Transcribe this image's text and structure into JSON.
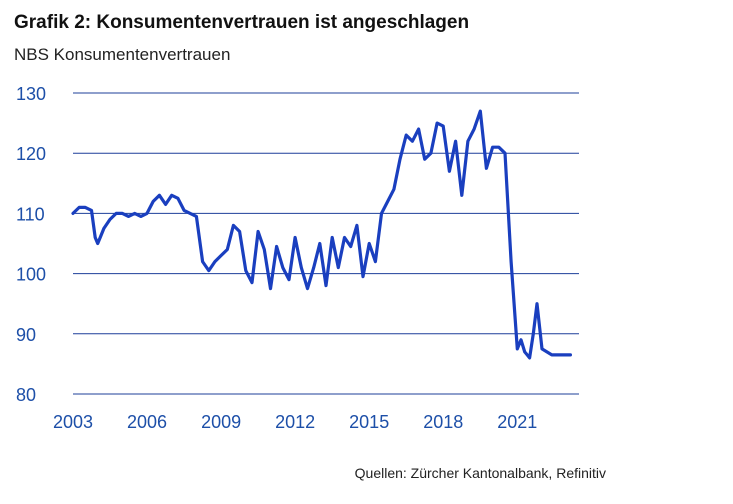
{
  "title": "Grafik 2: Konsumentenvertrauen ist angeschlagen",
  "subtitle": "NBS Konsumentenvertrauen",
  "source": "Quellen: Zürcher Kantonalbank, Refinitiv",
  "colors": {
    "line": "#1a3fbf",
    "axis_text": "#1d4fa8",
    "grid": "#1d3f9a"
  },
  "chart_data": {
    "type": "line",
    "title": "Grafik 2: Konsumentenvertrauen ist angeschlagen",
    "subtitle": "NBS Konsumentenvertrauen",
    "xlabel": "",
    "ylabel": "",
    "xlim": [
      2003,
      2023.5
    ],
    "ylim": [
      80,
      130
    ],
    "yticks": [
      80,
      90,
      100,
      110,
      120,
      130
    ],
    "xticks": [
      2003,
      2006,
      2009,
      2012,
      2015,
      2018,
      2021
    ],
    "grid": "horizontal",
    "legend": "none",
    "series": [
      {
        "x": [
          2003.0,
          2003.25,
          2003.5,
          2003.75,
          2003.9,
          2004.0,
          2004.1,
          2004.25,
          2004.5,
          2004.75,
          2005.0,
          2005.25,
          2005.5,
          2005.75,
          2006.0,
          2006.25,
          2006.5,
          2006.75,
          2007.0,
          2007.25,
          2007.5,
          2007.75,
          2008.0,
          2008.25,
          2008.5,
          2008.75,
          2009.0,
          2009.25,
          2009.5,
          2009.75,
          2010.0,
          2010.25,
          2010.5,
          2010.75,
          2011.0,
          2011.25,
          2011.5,
          2011.75,
          2012.0,
          2012.25,
          2012.5,
          2012.75,
          2013.0,
          2013.25,
          2013.5,
          2013.75,
          2014.0,
          2014.25,
          2014.5,
          2014.75,
          2015.0,
          2015.25,
          2015.5,
          2015.75,
          2016.0,
          2016.25,
          2016.5,
          2016.75,
          2017.0,
          2017.25,
          2017.5,
          2017.75,
          2018.0,
          2018.25,
          2018.5,
          2018.75,
          2019.0,
          2019.25,
          2019.5,
          2019.75,
          2020.0,
          2020.25,
          2020.5,
          2020.75,
          2021.0,
          2021.15,
          2021.3,
          2021.4,
          2021.5,
          2021.65,
          2021.8,
          2022.0,
          2022.2,
          2022.4,
          2022.55,
          2022.7,
          2022.85,
          2023.0,
          2023.15
        ],
        "y": [
          110,
          111,
          111,
          110.5,
          106,
          105,
          106,
          107.5,
          109,
          110,
          110,
          109.5,
          110,
          109.5,
          110,
          112,
          113,
          111.5,
          113,
          112.5,
          110.5,
          110,
          109.5,
          102,
          100.5,
          102,
          103,
          104,
          108,
          107,
          100.5,
          98.5,
          107,
          104,
          97.5,
          104.5,
          101,
          99,
          106,
          101,
          97.5,
          101,
          105,
          98,
          106,
          101,
          106,
          104.5,
          108,
          99.5,
          105,
          102,
          110,
          112,
          114,
          119,
          123,
          122,
          124,
          119,
          120,
          125,
          124.5,
          117,
          122,
          113,
          122,
          124,
          127,
          117.5,
          121,
          121,
          120,
          102,
          87.5,
          89,
          87,
          86.5,
          86,
          90,
          95,
          87.5,
          87,
          86.5,
          86.5,
          86.5,
          86.5,
          86.5,
          86.5
        ]
      }
    ]
  }
}
